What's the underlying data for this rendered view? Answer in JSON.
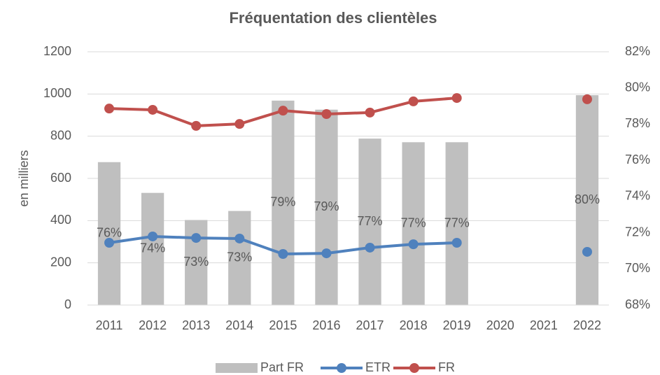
{
  "chart_data": {
    "type": "bar-line",
    "title": "Fréquentation des clientèles",
    "y_label": "en milliers",
    "categories": [
      "2011",
      "2012",
      "2013",
      "2014",
      "2015",
      "2016",
      "2017",
      "2018",
      "2019",
      "2020",
      "2021",
      "2022"
    ],
    "ylim": [
      0,
      1200
    ],
    "yticks": [
      0,
      200,
      400,
      600,
      800,
      1000,
      1200
    ],
    "y2lim": [
      68,
      82
    ],
    "y2ticks": [
      {
        "value": 68,
        "label": "68%"
      },
      {
        "value": 70,
        "label": "70%"
      },
      {
        "value": 72,
        "label": "72%"
      },
      {
        "value": 74,
        "label": "74%"
      },
      {
        "value": 76,
        "label": "76%"
      },
      {
        "value": 78,
        "label": "78%"
      },
      {
        "value": 80,
        "label": "80%"
      },
      {
        "value": 82,
        "label": "82%"
      }
    ],
    "grid": true,
    "legend": "bottom",
    "series": [
      {
        "name": "Part FR",
        "type": "bar",
        "axis": "y2",
        "color": "#bfbfbf",
        "values": [
          75.9,
          74.2,
          72.7,
          73.2,
          79.3,
          78.8,
          77.2,
          77.0,
          77.0,
          null,
          null,
          79.6
        ],
        "value_labels": [
          "76%",
          "74%",
          "73%",
          "73%",
          "79%",
          "79%",
          "77%",
          "77%",
          "77%",
          null,
          null,
          "80%"
        ]
      },
      {
        "name": "ETR",
        "type": "line",
        "color": "#4f81bd",
        "values": [
          295,
          325,
          318,
          315,
          242,
          245,
          272,
          288,
          295,
          null,
          null,
          252
        ]
      },
      {
        "name": "FR",
        "type": "line",
        "color": "#c0504d",
        "values": [
          931,
          925,
          849,
          858,
          921,
          905,
          912,
          965,
          981,
          null,
          null,
          975
        ]
      }
    ]
  }
}
